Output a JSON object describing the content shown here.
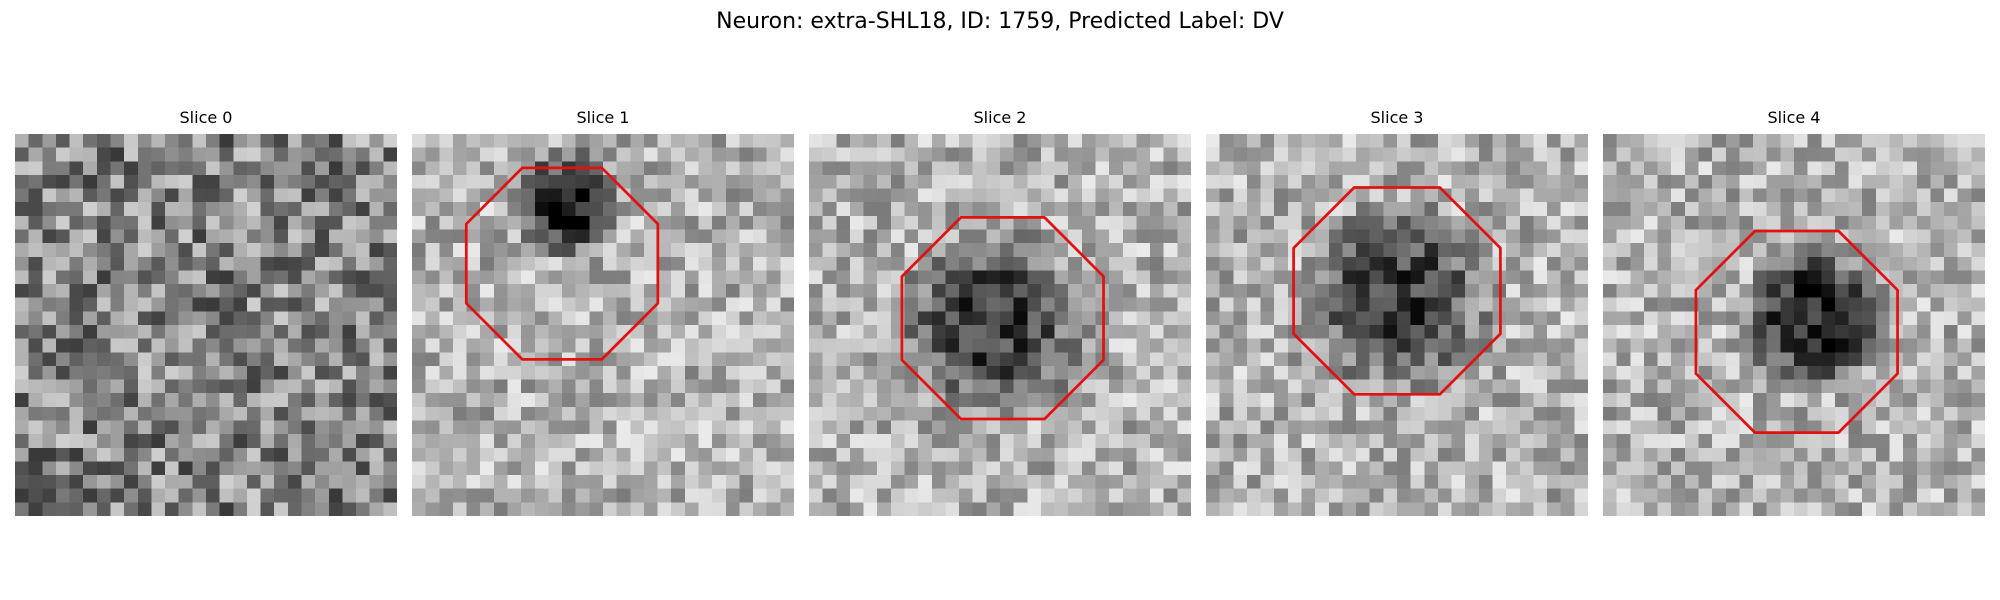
{
  "figure": {
    "title": "Neuron: extra-SHL18, ID: 1759, Predicted Label: DV",
    "image_grid_size": 28,
    "roi_color": "#e31010",
    "colormap": "grayscale"
  },
  "slices": [
    {
      "label": "Slice 0",
      "blob": null,
      "roi": null
    },
    {
      "label": "Slice 1",
      "blob": {
        "cx": 11.5,
        "cy": 5.0,
        "r": 4.5,
        "darkness": 0.62
      },
      "roi": {
        "cx": 11.0,
        "cy": 9.5,
        "r": 7.6
      }
    },
    {
      "label": "Slice 2",
      "blob": {
        "cx": 13.5,
        "cy": 14.0,
        "r": 8.0,
        "darkness": 0.45
      },
      "roi": {
        "cx": 14.2,
        "cy": 13.5,
        "r": 8.0
      }
    },
    {
      "label": "Slice 3",
      "blob": {
        "cx": 14.0,
        "cy": 12.0,
        "r": 8.0,
        "darkness": 0.45
      },
      "roi": {
        "cx": 14.0,
        "cy": 11.5,
        "r": 8.2
      }
    },
    {
      "label": "Slice 4",
      "blob": {
        "cx": 15.5,
        "cy": 13.5,
        "r": 6.0,
        "darkness": 0.58
      },
      "roi": {
        "cx": 14.2,
        "cy": 14.5,
        "r": 8.0
      }
    }
  ]
}
